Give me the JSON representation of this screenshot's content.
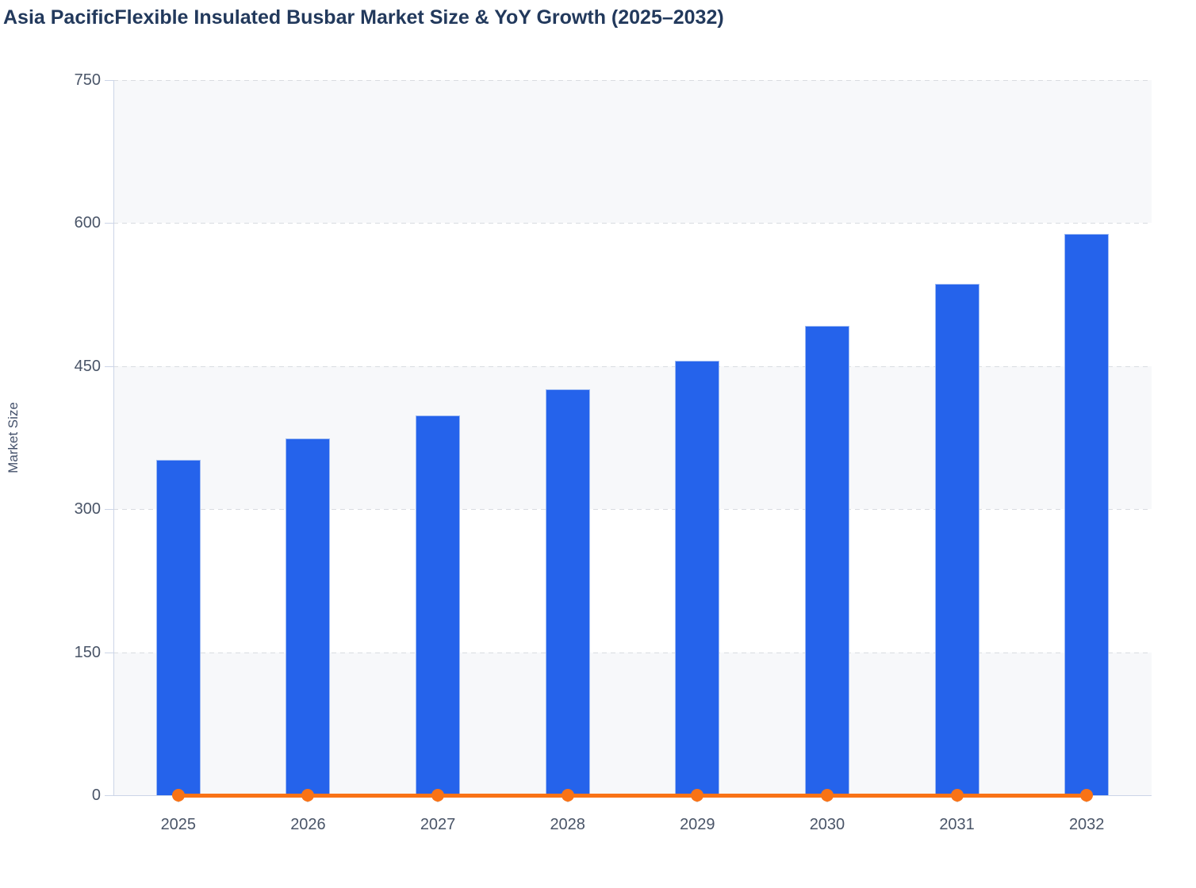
{
  "chart_data": {
    "type": "bar",
    "title": "Asia PacificFlexible Insulated Busbar Market Size & YoY Growth (2025–2032)",
    "xlabel": "",
    "ylabel": "Market Size",
    "categories": [
      "2025",
      "2026",
      "2027",
      "2028",
      "2029",
      "2030",
      "2031",
      "2032"
    ],
    "series": [
      {
        "name": "Market Size",
        "type": "bar",
        "color": "#2563eb",
        "values": [
          352,
          374,
          398,
          426,
          456,
          492,
          536,
          589
        ]
      },
      {
        "name": "YoY Growth",
        "type": "line",
        "color": "#f97316",
        "values": [
          0,
          0,
          0,
          0,
          0,
          0,
          0,
          0
        ],
        "note": "line with circular markers rendered flat along the 0 baseline"
      }
    ],
    "ylim": [
      0,
      750
    ],
    "yticks": [
      0,
      150,
      300,
      450,
      600,
      750
    ],
    "grid": "horizontal dashed gridlines at each y tick",
    "plot_bands": "horizontal bands alternating gray/white every 150 units, gray starting at 0–150",
    "legend_position": "none"
  },
  "colors": {
    "bar_fill": "#2563eb",
    "bar_edge": "#9fbbf3",
    "line_orange": "#f97316",
    "band_gray": "#f7f8fa",
    "band_white": "#ffffff",
    "gridline": "#d9dce1",
    "axis_line": "#ccd5e7",
    "tick_label": "#4a5568",
    "title_text": "#22395c",
    "page_background": "#ffffff"
  }
}
